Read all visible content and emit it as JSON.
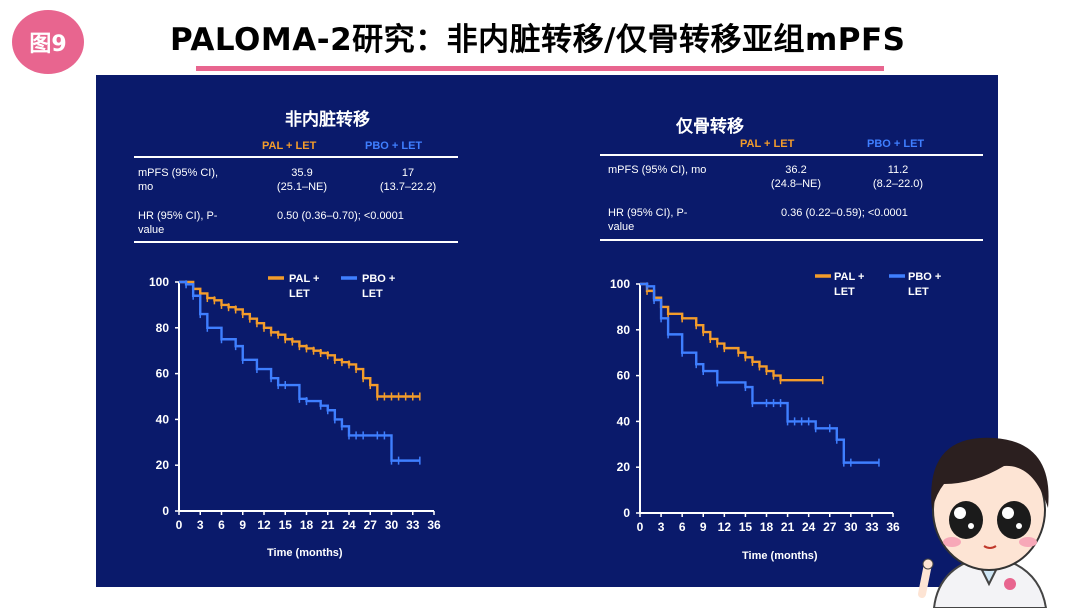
{
  "badge": "图9",
  "title": "PALOMA-2研究：非内脏转移/仅骨转移亚组mPFS",
  "colors": {
    "background": "#0a1a6b",
    "pal": "#f39c2b",
    "pbo": "#3f7fff",
    "accent": "#e8658f"
  },
  "panels": [
    {
      "title": "非内脏转移",
      "table": {
        "col_pal": "PAL + LET",
        "col_pbo": "PBO + LET",
        "r1_label_a": "mPFS (95% CI),",
        "r1_label_b": "mo",
        "r1_pal_a": "35.9",
        "r1_pal_b": "(25.1–NE)",
        "r1_pbo_a": "17",
        "r1_pbo_b": "(13.7–22.2)",
        "r2_label_a": "HR (95% CI), P-",
        "r2_label_b": "value",
        "r2_value": "0.50 (0.36–0.70); <0.0001"
      },
      "legend": {
        "pal_a": "PAL +",
        "pal_b": "LET",
        "pbo_a": "PBO +",
        "pbo_b": "LET"
      },
      "xlabel": "Time (months)"
    },
    {
      "title": "仅骨转移",
      "table": {
        "col_pal": "PAL + LET",
        "col_pbo": "PBO + LET",
        "r1_label_a": "mPFS (95% CI), mo",
        "r1_label_b": "",
        "r1_pal_a": "36.2",
        "r1_pal_b": "(24.8–NE)",
        "r1_pbo_a": "11.2",
        "r1_pbo_b": "(8.2–22.0)",
        "r2_label_a": "HR (95% CI), P-",
        "r2_label_b": "value",
        "r2_value": "0.36 (0.22–0.59); <0.0001"
      },
      "legend": {
        "pal_a": "PAL +",
        "pal_b": "LET",
        "pbo_a": "PBO +",
        "pbo_b": "LET"
      },
      "xlabel": "Time (months)"
    }
  ],
  "chart_data": [
    {
      "type": "line",
      "title": "非内脏转移",
      "xlabel": "Time (months)",
      "ylabel": "",
      "xlim": [
        0,
        36
      ],
      "ylim": [
        0,
        100
      ],
      "xticks": [
        0,
        3,
        6,
        9,
        12,
        15,
        18,
        21,
        24,
        27,
        30,
        33,
        36
      ],
      "yticks": [
        0,
        20,
        40,
        60,
        80,
        100
      ],
      "legend": "top-right",
      "series": [
        {
          "name": "PAL + LET",
          "color": "#f39c2b",
          "step": true,
          "x": [
            0,
            2,
            3,
            4,
            5,
            6,
            7,
            8,
            9,
            10,
            11,
            12,
            13,
            14,
            15,
            16,
            17,
            18,
            19,
            20,
            21,
            22,
            23,
            24,
            25,
            26,
            27,
            28,
            29,
            30,
            31,
            32,
            33,
            34
          ],
          "y": [
            100,
            97,
            95,
            93,
            92,
            90,
            89,
            88,
            86,
            84,
            82,
            80,
            78,
            77,
            75,
            74,
            72,
            71,
            70,
            69,
            68,
            66,
            65,
            64,
            62,
            58,
            55,
            50,
            50,
            50,
            50,
            50,
            50,
            50
          ]
        },
        {
          "name": "PBO + LET",
          "color": "#3f7fff",
          "step": true,
          "x": [
            0,
            1,
            2,
            3,
            4,
            6,
            8,
            9,
            11,
            13,
            14,
            15,
            17,
            18,
            20,
            21,
            22,
            23,
            24,
            25,
            26,
            28,
            29,
            30,
            31,
            34
          ],
          "y": [
            100,
            99,
            94,
            86,
            80,
            75,
            72,
            66,
            62,
            58,
            55,
            55,
            49,
            48,
            46,
            44,
            40,
            37,
            33,
            33,
            33,
            33,
            33,
            22,
            22,
            22
          ]
        }
      ]
    },
    {
      "type": "line",
      "title": "仅骨转移",
      "xlabel": "Time (months)",
      "ylabel": "",
      "xlim": [
        0,
        36
      ],
      "ylim": [
        0,
        100
      ],
      "xticks": [
        0,
        3,
        6,
        9,
        12,
        15,
        18,
        21,
        24,
        27,
        30,
        33,
        36
      ],
      "yticks": [
        0,
        20,
        40,
        60,
        80,
        100
      ],
      "legend": "top-right",
      "series": [
        {
          "name": "PAL + LET",
          "color": "#f39c2b",
          "step": true,
          "x": [
            0,
            1,
            2,
            3,
            4,
            6,
            8,
            9,
            10,
            11,
            12,
            14,
            15,
            16,
            17,
            18,
            19,
            20,
            26
          ],
          "y": [
            100,
            97,
            94,
            90,
            87,
            85,
            82,
            79,
            76,
            74,
            72,
            70,
            68,
            66,
            64,
            62,
            60,
            58,
            58
          ]
        },
        {
          "name": "PBO + LET",
          "color": "#3f7fff",
          "step": true,
          "x": [
            0,
            1,
            2,
            3,
            4,
            6,
            8,
            9,
            11,
            15,
            16,
            18,
            19,
            20,
            21,
            22,
            23,
            24,
            25,
            27,
            28,
            29,
            30,
            34
          ],
          "y": [
            100,
            99,
            93,
            85,
            78,
            70,
            65,
            62,
            57,
            55,
            48,
            48,
            48,
            48,
            40,
            40,
            40,
            40,
            37,
            37,
            32,
            22,
            22,
            22
          ]
        }
      ]
    }
  ]
}
